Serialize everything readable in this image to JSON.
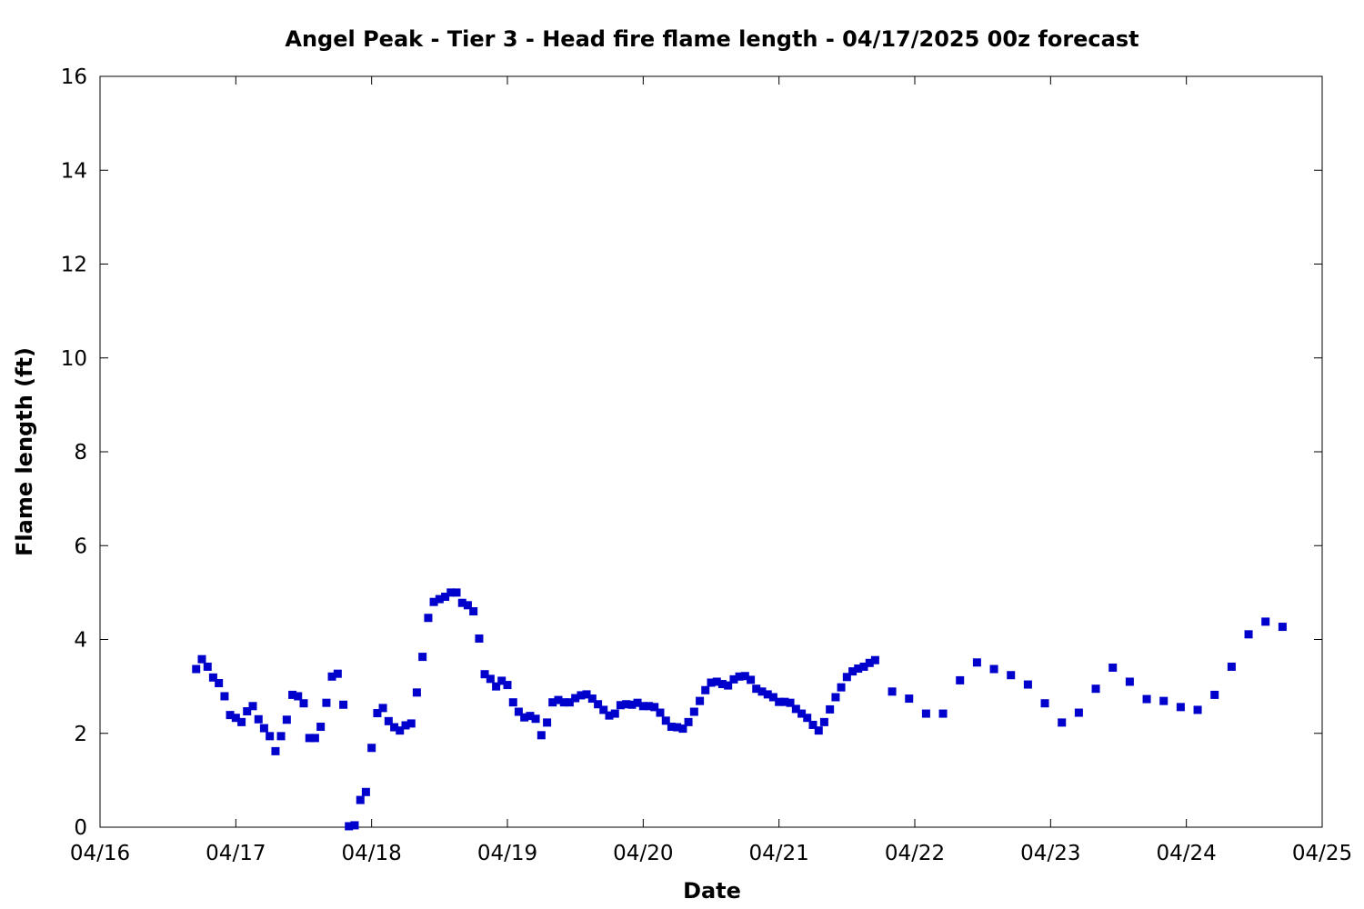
{
  "chart_data": {
    "type": "scatter",
    "title": "Angel Peak - Tier 3 - Head fire flame length - 04/17/2025 00z forecast",
    "xlabel": "Date",
    "ylabel": "Flame length (ft)",
    "grid": false,
    "legend": "none",
    "xlim": [
      0,
      9
    ],
    "ylim": [
      0,
      16
    ],
    "x_ticks": [
      {
        "value": 0,
        "label": "04/16"
      },
      {
        "value": 1,
        "label": "04/17"
      },
      {
        "value": 2,
        "label": "04/18"
      },
      {
        "value": 3,
        "label": "04/19"
      },
      {
        "value": 4,
        "label": "04/20"
      },
      {
        "value": 5,
        "label": "04/21"
      },
      {
        "value": 6,
        "label": "04/22"
      },
      {
        "value": 7,
        "label": "04/23"
      },
      {
        "value": 8,
        "label": "04/24"
      },
      {
        "value": 9,
        "label": "04/25"
      }
    ],
    "y_ticks": [
      {
        "value": 0,
        "label": "0"
      },
      {
        "value": 2,
        "label": "2"
      },
      {
        "value": 4,
        "label": "4"
      },
      {
        "value": 6,
        "label": "6"
      },
      {
        "value": 8,
        "label": "8"
      },
      {
        "value": 10,
        "label": "10"
      },
      {
        "value": 12,
        "label": "12"
      },
      {
        "value": 14,
        "label": "14"
      },
      {
        "value": 16,
        "label": "16"
      }
    ],
    "series": [
      {
        "color": "#0000cc",
        "x": [
          0.708,
          0.75,
          0.792,
          0.833,
          0.875,
          0.917,
          0.958,
          1.0,
          1.042,
          1.083,
          1.125,
          1.167,
          1.208,
          1.25,
          1.292,
          1.333,
          1.375,
          1.417,
          1.458,
          1.5,
          1.542,
          1.583,
          1.625,
          1.667,
          1.708,
          1.75,
          1.792,
          1.833,
          1.875,
          1.917,
          1.958,
          2.0,
          2.042,
          2.083,
          2.125,
          2.167,
          2.208,
          2.25,
          2.292,
          2.333,
          2.375,
          2.417,
          2.458,
          2.5,
          2.542,
          2.583,
          2.625,
          2.667,
          2.708,
          2.75,
          2.792,
          2.833,
          2.875,
          2.917,
          2.958,
          3.0,
          3.042,
          3.083,
          3.125,
          3.167,
          3.208,
          3.25,
          3.292,
          3.333,
          3.375,
          3.417,
          3.458,
          3.5,
          3.542,
          3.583,
          3.625,
          3.667,
          3.708,
          3.75,
          3.792,
          3.833,
          3.875,
          3.917,
          3.958,
          4.0,
          4.042,
          4.083,
          4.125,
          4.167,
          4.208,
          4.25,
          4.292,
          4.333,
          4.375,
          4.417,
          4.458,
          4.5,
          4.542,
          4.583,
          4.625,
          4.667,
          4.708,
          4.75,
          4.792,
          4.833,
          4.875,
          4.917,
          4.958,
          5.0,
          5.042,
          5.083,
          5.125,
          5.167,
          5.208,
          5.25,
          5.292,
          5.333,
          5.375,
          5.417,
          5.458,
          5.5,
          5.542,
          5.583,
          5.625,
          5.667,
          5.708,
          5.833,
          5.958,
          6.083,
          6.208,
          6.333,
          6.458,
          6.583,
          6.708,
          6.833,
          6.958,
          7.083,
          7.208,
          7.333,
          7.458,
          7.583,
          7.708,
          7.833,
          7.958,
          8.083,
          8.208,
          8.333,
          8.458,
          8.583,
          8.708
        ],
        "y": [
          3.37,
          3.58,
          3.42,
          3.19,
          3.07,
          2.79,
          2.39,
          2.33,
          2.24,
          2.47,
          2.58,
          2.3,
          2.11,
          1.94,
          1.62,
          1.94,
          2.29,
          2.82,
          2.79,
          2.64,
          1.9,
          1.9,
          2.14,
          2.65,
          3.21,
          3.27,
          2.61,
          0.02,
          0.04,
          0.58,
          0.75,
          1.69,
          2.43,
          2.54,
          2.26,
          2.13,
          2.06,
          2.17,
          2.21,
          2.87,
          3.63,
          4.46,
          4.8,
          4.86,
          4.91,
          5.0,
          5.0,
          4.78,
          4.73,
          4.6,
          4.02,
          3.26,
          3.16,
          3.0,
          3.12,
          3.03,
          2.66,
          2.46,
          2.34,
          2.37,
          2.31,
          1.96,
          2.23,
          2.66,
          2.71,
          2.66,
          2.66,
          2.75,
          2.81,
          2.83,
          2.74,
          2.62,
          2.5,
          2.38,
          2.42,
          2.6,
          2.62,
          2.61,
          2.65,
          2.58,
          2.58,
          2.56,
          2.44,
          2.27,
          2.14,
          2.13,
          2.1,
          2.24,
          2.46,
          2.69,
          2.92,
          3.08,
          3.1,
          3.05,
          3.02,
          3.15,
          3.21,
          3.22,
          3.14,
          2.95,
          2.89,
          2.83,
          2.77,
          2.67,
          2.67,
          2.65,
          2.52,
          2.42,
          2.33,
          2.18,
          2.06,
          2.24,
          2.51,
          2.77,
          2.98,
          3.2,
          3.32,
          3.38,
          3.42,
          3.5,
          3.56,
          2.89,
          2.74,
          2.42,
          2.42,
          3.13,
          3.51,
          3.37,
          3.24,
          3.04,
          2.64,
          2.23,
          2.44,
          2.95,
          3.4,
          3.1,
          2.73,
          2.69,
          2.56,
          2.5,
          2.82,
          3.42,
          4.11,
          4.38,
          4.27
        ]
      }
    ]
  }
}
